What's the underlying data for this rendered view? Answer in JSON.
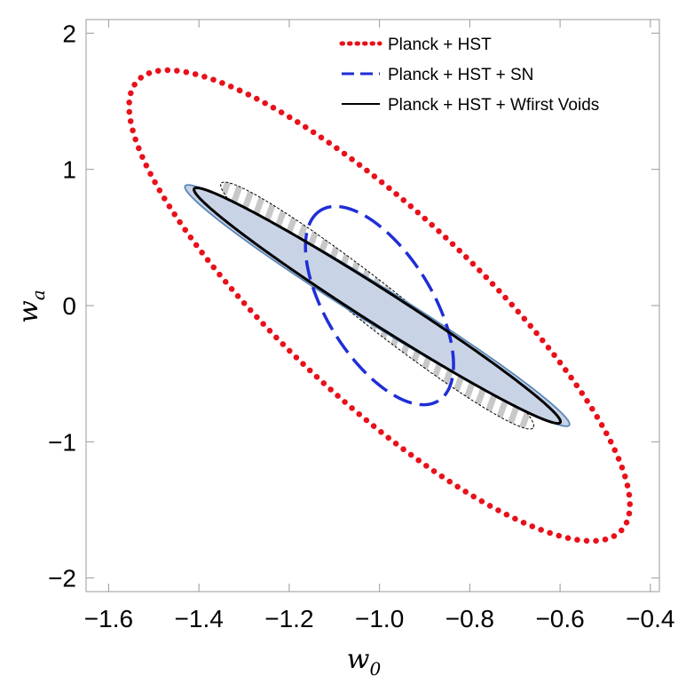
{
  "chart_data": {
    "type": "contour",
    "title": "",
    "xlabel_main": "w",
    "xlabel_sub": "0",
    "ylabel_main": "w",
    "ylabel_sub": "a",
    "xlim": [
      -1.65,
      -0.38
    ],
    "ylim": [
      -2.1,
      2.1
    ],
    "x_ticks": [
      -1.6,
      -1.4,
      -1.2,
      -1.0,
      -0.8,
      -0.6,
      -0.4
    ],
    "x_tick_labels": [
      "−1.6",
      "−1.4",
      "−1.2",
      "−1.0",
      "−0.8",
      "−0.6",
      "−0.4"
    ],
    "y_ticks": [
      -2,
      -1,
      0,
      1,
      2
    ],
    "y_tick_labels": [
      "−2",
      "−1",
      "0",
      "1",
      "2"
    ],
    "legend_position": "top-right",
    "series": [
      {
        "name": "Planck + HST",
        "style": "dotted",
        "color": "#e8111a",
        "center": [
          -1.0,
          0.0
        ],
        "extreme_points": [
          [
            -1.31,
            1.58
          ],
          [
            -0.69,
            -1.58
          ],
          [
            -1.46,
            0.7
          ],
          [
            -0.54,
            -0.7
          ]
        ]
      },
      {
        "name": "Planck + HST + SN",
        "style": "dashed",
        "color": "#1f2ed6",
        "center": [
          -1.0,
          0.0
        ],
        "extreme_points": [
          [
            -1.13,
            0.7
          ],
          [
            -0.87,
            -0.7
          ],
          [
            -1.15,
            0.5
          ],
          [
            -0.85,
            -0.5
          ]
        ]
      },
      {
        "name": "Planck + HST + Wfirst Voids",
        "style": "solid",
        "color": "#000000",
        "fill": "#c9d3e6",
        "center": [
          -1.0,
          0.0
        ],
        "extreme_points": [
          [
            -1.41,
            0.86
          ],
          [
            -0.6,
            -0.86
          ]
        ]
      }
    ],
    "extra_contours": [
      {
        "name": "outer-fill-contour",
        "fill": "#c9d3e6",
        "stroke": "#5a86b8",
        "extreme_points": [
          [
            -1.43,
            0.88
          ],
          [
            -0.58,
            -0.88
          ]
        ]
      },
      {
        "name": "hatched-contour",
        "stroke": "#000000",
        "hatch": "#c8c8c8",
        "extreme_points": [
          [
            -1.35,
            0.9
          ],
          [
            -0.66,
            -0.9
          ]
        ]
      }
    ]
  }
}
